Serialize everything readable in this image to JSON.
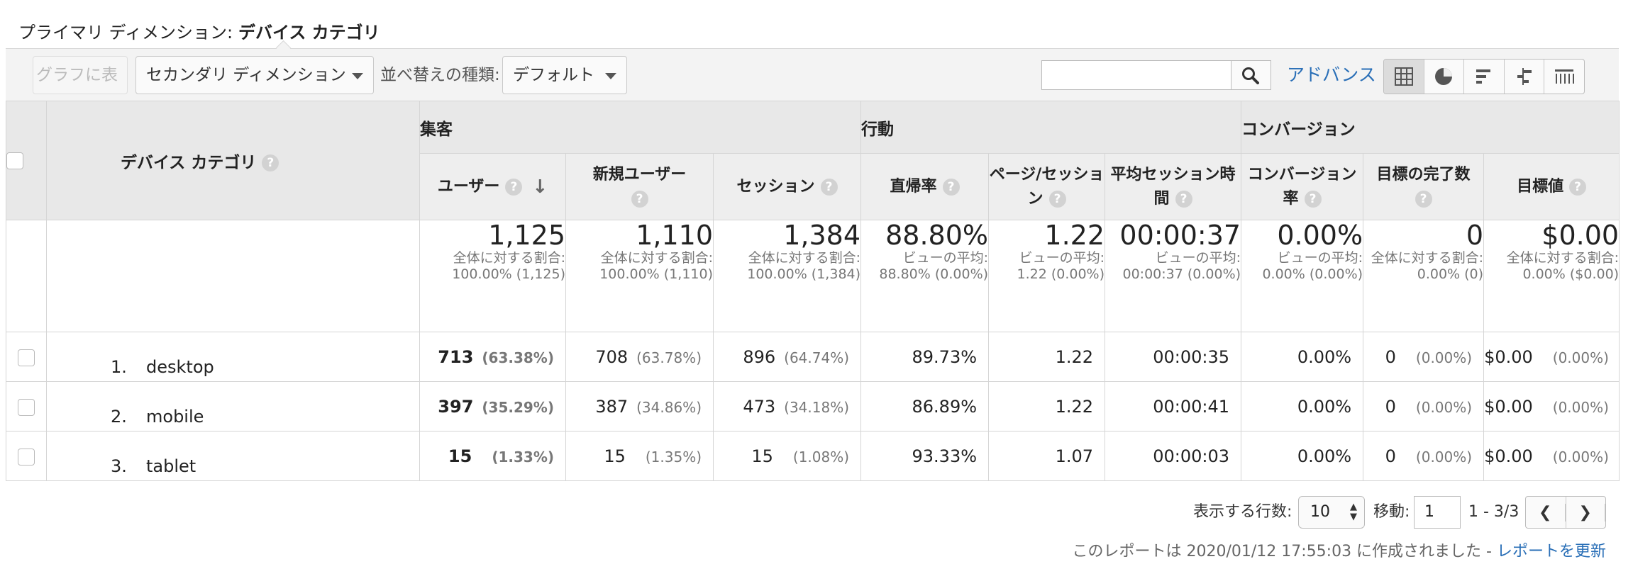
{
  "primary_dimension": {
    "label": "プライマリ ディメンション:",
    "value": "デバイス カテゴリ"
  },
  "toolbar": {
    "chart_button": "グラフに表示",
    "secondary_dimension": "セカンダリ ディメンション",
    "sort_label": "並べ替えの種類:",
    "sort_value": "デフォルト",
    "search_placeholder": "",
    "advanced": "アドバンス"
  },
  "table": {
    "dimension_header": "デバイス カテゴリ",
    "groups": {
      "acquisition": "集客",
      "behavior": "行動",
      "conversion": "コンバージョン"
    },
    "metrics": {
      "users": "ユーザー",
      "new_users": "新規ユーザー",
      "sessions": "セッション",
      "bounce": "直帰率",
      "pages_per_session": "ページ/セッション",
      "avg_duration": "平均セッション時間",
      "conversion_rate": "コンバージョン率",
      "goal_completions": "目標の完了数",
      "goal_value": "目標値"
    },
    "totals": {
      "users": {
        "value": "1,125",
        "sub": "全体に対する割合: 100.00% (1,125)"
      },
      "new_users": {
        "value": "1,110",
        "sub": "全体に対する割合: 100.00% (1,110)"
      },
      "sessions": {
        "value": "1,384",
        "sub": "全体に対する割合: 100.00% (1,384)"
      },
      "bounce": {
        "value": "88.80%",
        "sub": "ビューの平均: 88.80% (0.00%)"
      },
      "pages_per_session": {
        "value": "1.22",
        "sub": "ビューの平均: 1.22 (0.00%)"
      },
      "avg_duration": {
        "value": "00:00:37",
        "sub": "ビューの平均: 00:00:37 (0.00%)"
      },
      "conversion_rate": {
        "value": "0.00%",
        "sub": "ビューの平均: 0.00% (0.00%)"
      },
      "goal_completions": {
        "value": "0",
        "sub": "全体に対する割合: 0.00% (0)"
      },
      "goal_value": {
        "value": "$0.00",
        "sub": "全体に対する割合: 0.00% ($0.00)"
      }
    },
    "rows": [
      {
        "index": "1.",
        "name": "desktop",
        "users": "713",
        "users_pct": "(63.38%)",
        "new_users": "708",
        "new_users_pct": "(63.78%)",
        "sessions": "896",
        "sessions_pct": "(64.74%)",
        "bounce": "89.73%",
        "pps": "1.22",
        "duration": "00:00:35",
        "conv": "0.00%",
        "goals": "0",
        "goals_pct": "(0.00%)",
        "value": "$0.00",
        "value_pct": "(0.00%)"
      },
      {
        "index": "2.",
        "name": "mobile",
        "users": "397",
        "users_pct": "(35.29%)",
        "new_users": "387",
        "new_users_pct": "(34.86%)",
        "sessions": "473",
        "sessions_pct": "(34.18%)",
        "bounce": "86.89%",
        "pps": "1.22",
        "duration": "00:00:41",
        "conv": "0.00%",
        "goals": "0",
        "goals_pct": "(0.00%)",
        "value": "$0.00",
        "value_pct": "(0.00%)"
      },
      {
        "index": "3.",
        "name": "tablet",
        "users": "15",
        "users_pct": "(1.33%)",
        "new_users": "15",
        "new_users_pct": "(1.35%)",
        "sessions": "15",
        "sessions_pct": "(1.08%)",
        "bounce": "93.33%",
        "pps": "1.07",
        "duration": "00:00:03",
        "conv": "0.00%",
        "goals": "0",
        "goals_pct": "(0.00%)",
        "value": "$0.00",
        "value_pct": "(0.00%)"
      }
    ]
  },
  "pager": {
    "rows_label": "表示する行数:",
    "rows_value": "10",
    "goto_label": "移動:",
    "goto_value": "1",
    "range": "1 - 3/3"
  },
  "footer": {
    "text": "このレポートは 2020/01/12 17:55:03 に作成されました - ",
    "link": "レポートを更新"
  }
}
